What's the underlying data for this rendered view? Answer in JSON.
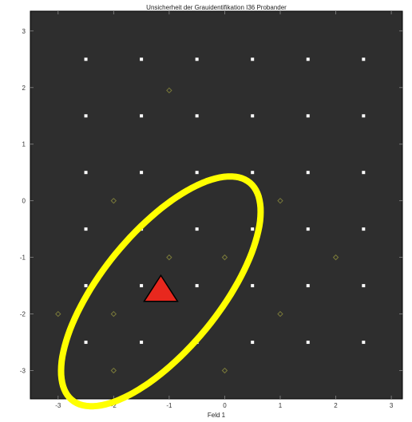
{
  "chart_data": {
    "type": "scatter",
    "title": "Unsicherheit der Grauidentifikation I36 Probander",
    "xlabel": "Feld 1",
    "ylabel": "",
    "xlim": [
      -3.5,
      3.2
    ],
    "ylim": [
      -3.5,
      3.35
    ],
    "xticks": [
      -3,
      -2,
      -1,
      0,
      1,
      2,
      3
    ],
    "yticks": [
      -3,
      -2,
      -1,
      0,
      1,
      2,
      3
    ],
    "grid": false,
    "background_color": "#2e2e2e",
    "series": [
      {
        "marker": "square",
        "color": "#ffffff",
        "points": [
          [
            -2.5,
            2.5
          ],
          [
            -1.5,
            2.5
          ],
          [
            -0.5,
            2.5
          ],
          [
            0.5,
            2.5
          ],
          [
            1.5,
            2.5
          ],
          [
            2.5,
            2.5
          ],
          [
            -2.5,
            1.5
          ],
          [
            -1.5,
            1.5
          ],
          [
            -0.5,
            1.5
          ],
          [
            0.5,
            1.5
          ],
          [
            1.5,
            1.5
          ],
          [
            2.5,
            1.5
          ],
          [
            -2.5,
            0.5
          ],
          [
            -1.5,
            0.5
          ],
          [
            -0.5,
            0.5
          ],
          [
            0.5,
            0.5
          ],
          [
            1.5,
            0.5
          ],
          [
            2.5,
            0.5
          ],
          [
            -2.5,
            -0.5
          ],
          [
            -1.5,
            -0.5
          ],
          [
            -0.5,
            -0.5
          ],
          [
            0.5,
            -0.5
          ],
          [
            1.5,
            -0.5
          ],
          [
            2.5,
            -0.5
          ],
          [
            -2.5,
            -1.5
          ],
          [
            -1.5,
            -1.5
          ],
          [
            -0.5,
            -1.5
          ],
          [
            0.5,
            -1.5
          ],
          [
            1.5,
            -1.5
          ],
          [
            2.5,
            -1.5
          ],
          [
            -2.5,
            -2.5
          ],
          [
            -1.5,
            -2.5
          ],
          [
            -0.5,
            -2.5
          ],
          [
            0.5,
            -2.5
          ],
          [
            1.5,
            -2.5
          ],
          [
            2.5,
            -2.5
          ]
        ]
      },
      {
        "marker": "diamond",
        "color": "#7a7a3a",
        "points": [
          [
            -1.0,
            1.95
          ],
          [
            -2.0,
            0.0
          ],
          [
            1.0,
            0.0
          ],
          [
            -2.0,
            -1.0
          ],
          [
            -1.0,
            -1.0
          ],
          [
            0.0,
            -1.0
          ],
          [
            2.0,
            -1.0
          ],
          [
            -3.0,
            -2.0
          ],
          [
            -2.0,
            -2.0
          ],
          [
            1.0,
            -2.0
          ],
          [
            -2.0,
            -3.0
          ],
          [
            0.0,
            -3.0
          ]
        ]
      },
      {
        "marker": "triangle",
        "color": "#e8281e",
        "points": [
          [
            -1.15,
            -1.6
          ]
        ]
      }
    ],
    "ellipse": {
      "color": "#ffff00",
      "center": [
        -1.15,
        -1.6
      ],
      "radius_major": 2.5,
      "radius_minor": 1.05,
      "angle_deg": 50
    }
  }
}
